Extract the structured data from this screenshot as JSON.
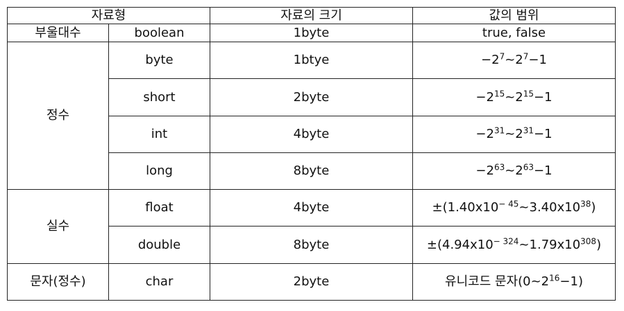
{
  "headers": {
    "type": "자료형",
    "size": "자료의 크기",
    "range": "값의 범위"
  },
  "rows": {
    "boolean": {
      "category": "부울대수",
      "name": "boolean",
      "size": "1byte",
      "range": "true,  false"
    },
    "byte": {
      "name": "byte",
      "size": "1btye",
      "r": {
        "pre": "−2",
        "e1": "7",
        "mid": "~2",
        "e2": "7",
        "post": "−1"
      }
    },
    "short": {
      "name": "short",
      "size": "2byte",
      "r": {
        "pre": "−2",
        "e1": "15",
        "mid": "~2",
        "e2": "15",
        "post": "−1"
      }
    },
    "int": {
      "name": "int",
      "size": "4byte",
      "r": {
        "pre": "−2",
        "e1": "31",
        "mid": "~2",
        "e2": "31",
        "post": "−1"
      }
    },
    "long": {
      "name": "long",
      "size": "8byte",
      "r": {
        "pre": "−2",
        "e1": "63",
        "mid": "~2",
        "e2": "63",
        "post": "−1"
      }
    },
    "float": {
      "name": "float",
      "size": "4byte",
      "r": {
        "pre": "±(1.40x10",
        "e1": "− 45",
        "mid": "~3.40x10",
        "e2": "38",
        "post": ")"
      }
    },
    "double": {
      "name": "double",
      "size": "8byte",
      "r": {
        "pre": "±(4.94x10",
        "e1": "− 324",
        "mid": "~1.79x10",
        "e2": "308",
        "post": ")"
      }
    },
    "char": {
      "category": "문자(정수)",
      "name": "char",
      "size": "2byte",
      "r": {
        "pre": "유니코드 문자(0~2",
        "e1": "16",
        "mid": "−1)",
        "e2": "",
        "post": ""
      }
    }
  },
  "groups": {
    "integer": "정수",
    "real": "실수"
  }
}
